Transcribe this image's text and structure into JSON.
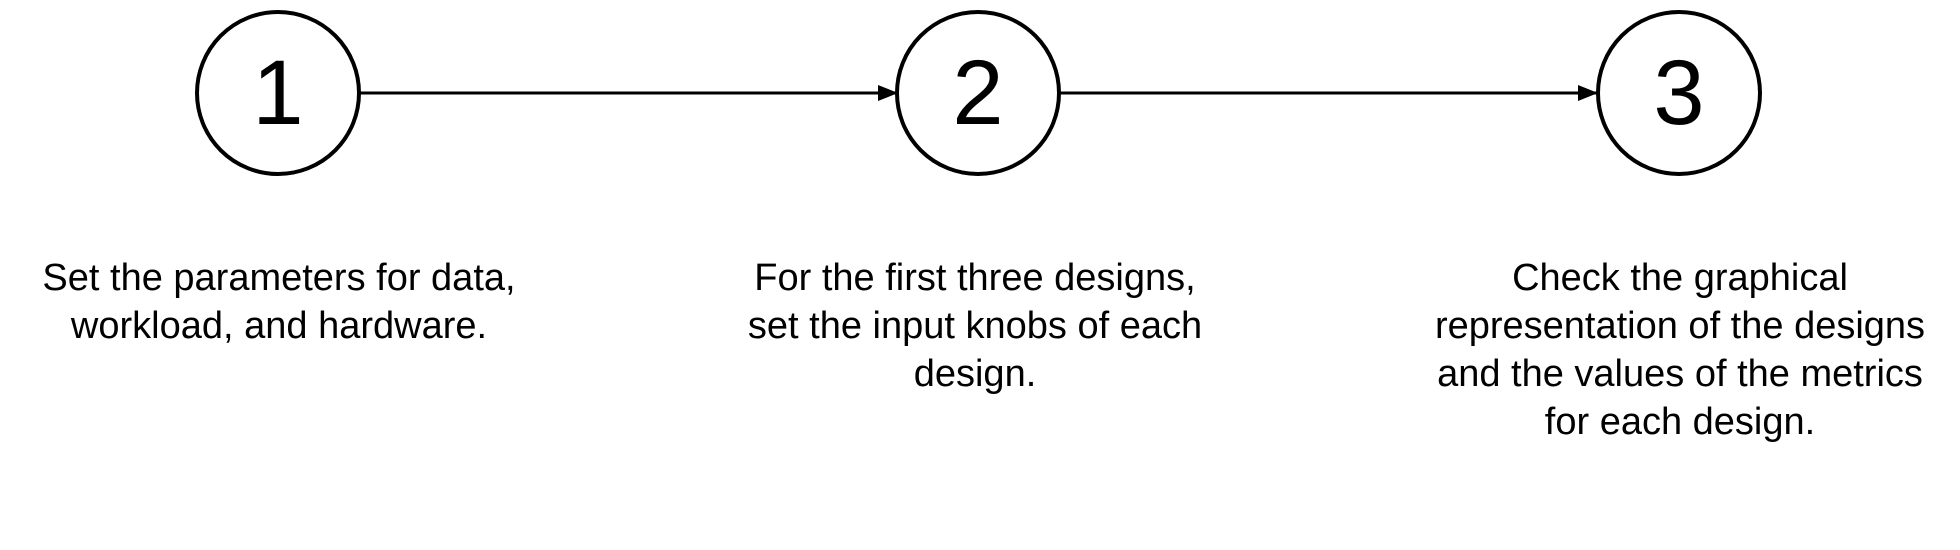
{
  "steps": [
    {
      "number": "1",
      "description": "Set the parameters for data, workload, and hardware."
    },
    {
      "number": "2",
      "description": "For the first three designs, set the input knobs of each design."
    },
    {
      "number": "3",
      "description": "Check the graphical representation of the designs and the values of the metrics for each design."
    }
  ]
}
